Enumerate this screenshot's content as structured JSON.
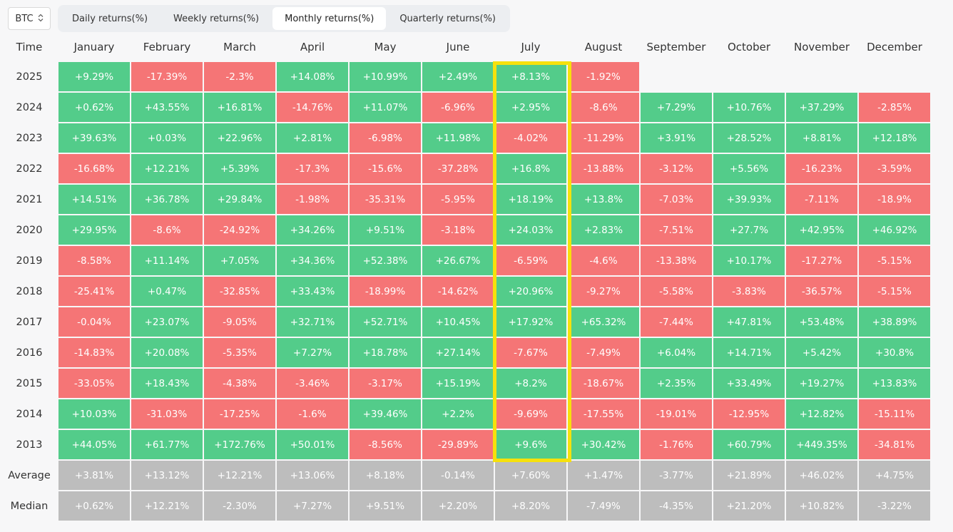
{
  "asset_select": {
    "value": "BTC",
    "icon": "chevron-updown-icon"
  },
  "tabs": [
    {
      "label": "Daily returns(%)",
      "active": false
    },
    {
      "label": "Weekly returns(%)",
      "active": false
    },
    {
      "label": "Monthly returns(%)",
      "active": true
    },
    {
      "label": "Quarterly returns(%)",
      "active": false
    }
  ],
  "table": {
    "corner_label": "Time",
    "months": [
      "January",
      "February",
      "March",
      "April",
      "May",
      "June",
      "July",
      "August",
      "September",
      "October",
      "November",
      "December"
    ],
    "rows": [
      {
        "year": "2025",
        "values": [
          "+9.29%",
          "-17.39%",
          "-2.3%",
          "+14.08%",
          "+10.99%",
          "+2.49%",
          "+8.13%",
          "-1.92%",
          "",
          "",
          "",
          ""
        ]
      },
      {
        "year": "2024",
        "values": [
          "+0.62%",
          "+43.55%",
          "+16.81%",
          "-14.76%",
          "+11.07%",
          "-6.96%",
          "+2.95%",
          "-8.6%",
          "+7.29%",
          "+10.76%",
          "+37.29%",
          "-2.85%"
        ]
      },
      {
        "year": "2023",
        "values": [
          "+39.63%",
          "+0.03%",
          "+22.96%",
          "+2.81%",
          "-6.98%",
          "+11.98%",
          "-4.02%",
          "-11.29%",
          "+3.91%",
          "+28.52%",
          "+8.81%",
          "+12.18%"
        ]
      },
      {
        "year": "2022",
        "values": [
          "-16.68%",
          "+12.21%",
          "+5.39%",
          "-17.3%",
          "-15.6%",
          "-37.28%",
          "+16.8%",
          "-13.88%",
          "-3.12%",
          "+5.56%",
          "-16.23%",
          "-3.59%"
        ]
      },
      {
        "year": "2021",
        "values": [
          "+14.51%",
          "+36.78%",
          "+29.84%",
          "-1.98%",
          "-35.31%",
          "-5.95%",
          "+18.19%",
          "+13.8%",
          "-7.03%",
          "+39.93%",
          "-7.11%",
          "-18.9%"
        ]
      },
      {
        "year": "2020",
        "values": [
          "+29.95%",
          "-8.6%",
          "-24.92%",
          "+34.26%",
          "+9.51%",
          "-3.18%",
          "+24.03%",
          "+2.83%",
          "-7.51%",
          "+27.7%",
          "+42.95%",
          "+46.92%"
        ]
      },
      {
        "year": "2019",
        "values": [
          "-8.58%",
          "+11.14%",
          "+7.05%",
          "+34.36%",
          "+52.38%",
          "+26.67%",
          "-6.59%",
          "-4.6%",
          "-13.38%",
          "+10.17%",
          "-17.27%",
          "-5.15%"
        ]
      },
      {
        "year": "2018",
        "values": [
          "-25.41%",
          "+0.47%",
          "-32.85%",
          "+33.43%",
          "-18.99%",
          "-14.62%",
          "+20.96%",
          "-9.27%",
          "-5.58%",
          "-3.83%",
          "-36.57%",
          "-5.15%"
        ]
      },
      {
        "year": "2017",
        "values": [
          "-0.04%",
          "+23.07%",
          "-9.05%",
          "+32.71%",
          "+52.71%",
          "+10.45%",
          "+17.92%",
          "+65.32%",
          "-7.44%",
          "+47.81%",
          "+53.48%",
          "+38.89%"
        ]
      },
      {
        "year": "2016",
        "values": [
          "-14.83%",
          "+20.08%",
          "-5.35%",
          "+7.27%",
          "+18.78%",
          "+27.14%",
          "-7.67%",
          "-7.49%",
          "+6.04%",
          "+14.71%",
          "+5.42%",
          "+30.8%"
        ]
      },
      {
        "year": "2015",
        "values": [
          "-33.05%",
          "+18.43%",
          "-4.38%",
          "-3.46%",
          "-3.17%",
          "+15.19%",
          "+8.2%",
          "-18.67%",
          "+2.35%",
          "+33.49%",
          "+19.27%",
          "+13.83%"
        ]
      },
      {
        "year": "2014",
        "values": [
          "+10.03%",
          "-31.03%",
          "-17.25%",
          "-1.6%",
          "+39.46%",
          "+2.2%",
          "-9.69%",
          "-17.55%",
          "-19.01%",
          "-12.95%",
          "+12.82%",
          "-15.11%"
        ]
      },
      {
        "year": "2013",
        "values": [
          "+44.05%",
          "+61.77%",
          "+172.76%",
          "+50.01%",
          "-8.56%",
          "-29.89%",
          "+9.6%",
          "+30.42%",
          "-1.76%",
          "+60.79%",
          "+449.35%",
          "-34.81%"
        ]
      }
    ],
    "stats": [
      {
        "label": "Average",
        "values": [
          "+3.81%",
          "+13.12%",
          "+12.21%",
          "+13.06%",
          "+8.18%",
          "-0.14%",
          "+7.60%",
          "+1.47%",
          "-3.77%",
          "+21.89%",
          "+46.02%",
          "+4.75%"
        ]
      },
      {
        "label": "Median",
        "values": [
          "+0.62%",
          "+12.21%",
          "-2.30%",
          "+7.27%",
          "+9.51%",
          "+2.20%",
          "+8.20%",
          "-7.49%",
          "-4.35%",
          "+21.20%",
          "+10.82%",
          "-3.22%"
        ]
      }
    ],
    "colors": {
      "positive": "#53cc8a",
      "negative": "#f57576",
      "stat": "#bdbdbd",
      "highlight": "#f6e10c"
    },
    "highlight_month": "July"
  }
}
